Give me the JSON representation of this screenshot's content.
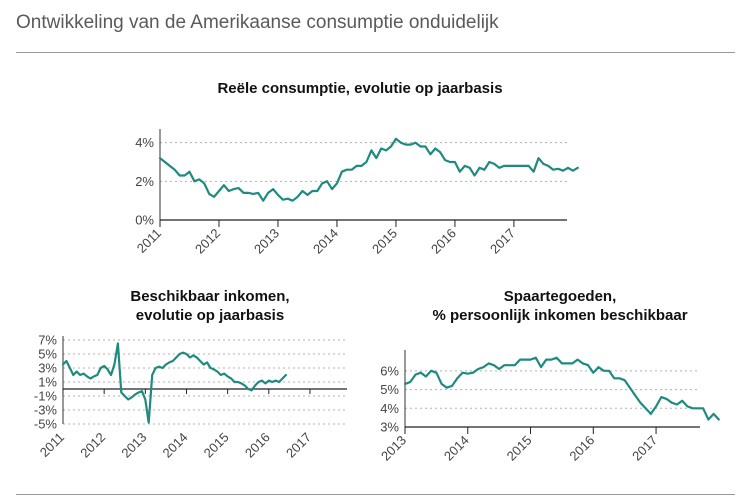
{
  "page": {
    "title": "Ontwikkeling van de Amerikaanse consumptie onduidelijk",
    "line_color": "#1f8a80",
    "grid_color": "#b0b0b0"
  },
  "chart_data": [
    {
      "type": "line",
      "title_lines": [
        "Reële consumptie, evolutie op jaarbasis"
      ],
      "xlabel": "",
      "ylabel": "",
      "xlim": [
        2011,
        2017.9
      ],
      "ylim": [
        0,
        4.5
      ],
      "yticks": [
        0,
        2,
        4
      ],
      "ytick_labels": [
        "0%",
        "2%",
        "4%"
      ],
      "xticks": [
        2011,
        2012,
        2013,
        2014,
        2015,
        2016,
        2017
      ],
      "xtick_labels": [
        "2011",
        "2012",
        "2013",
        "2014",
        "2015",
        "2016",
        "2017"
      ],
      "grid": true,
      "series": [
        {
          "x_start": 2011,
          "x_step": 0.0833333,
          "values": [
            3.2,
            3.0,
            2.8,
            2.6,
            2.3,
            2.3,
            2.5,
            2.0,
            2.1,
            1.9,
            1.35,
            1.2,
            1.5,
            1.8,
            1.5,
            1.6,
            1.65,
            1.4,
            1.4,
            1.35,
            1.4,
            1.0,
            1.4,
            1.6,
            1.3,
            1.05,
            1.1,
            1.0,
            1.2,
            1.5,
            1.3,
            1.5,
            1.5,
            1.9,
            2.0,
            1.6,
            1.9,
            2.5,
            2.6,
            2.6,
            2.8,
            2.8,
            3.0,
            3.6,
            3.2,
            3.7,
            3.6,
            3.8,
            4.2,
            4.0,
            3.9,
            3.9,
            4.0,
            3.8,
            3.8,
            3.4,
            3.7,
            3.5,
            3.1,
            3.0,
            3.0,
            2.5,
            2.8,
            2.7,
            2.3,
            2.7,
            2.6,
            3.0,
            2.9,
            2.7,
            2.8,
            2.8,
            2.8,
            2.8,
            2.8,
            2.8,
            2.5,
            3.2,
            2.9,
            2.8,
            2.6,
            2.65,
            2.55,
            2.7,
            2.55,
            2.7
          ]
        }
      ]
    },
    {
      "type": "line",
      "title_lines": [
        "Beschikbaar inkomen,",
        "evolutie op jaarbasis"
      ],
      "xlabel": "",
      "ylabel": "",
      "xlim": [
        2011,
        2017.9
      ],
      "ylim": [
        -5,
        7
      ],
      "yticks": [
        7,
        5,
        3,
        1,
        -1,
        -3,
        -5
      ],
      "ytick_labels": [
        "7%",
        "5%",
        "3%",
        "1%",
        "-1%",
        "-3%",
        "-5%"
      ],
      "xticks": [
        2011,
        2012,
        2013,
        2014,
        2015,
        2016,
        2017
      ],
      "xtick_labels": [
        "2011",
        "2012",
        "2013",
        "2014",
        "2015",
        "2016",
        "2017"
      ],
      "grid": true,
      "zero_axis": 0,
      "series": [
        {
          "x_start": 2011,
          "x_step": 0.0833333,
          "values": [
            3.5,
            4.0,
            3.0,
            2.0,
            2.5,
            2.0,
            2.2,
            1.8,
            1.5,
            1.8,
            2.0,
            3.0,
            3.3,
            2.8,
            2.0,
            3.5,
            6.5,
            -0.5,
            -1.0,
            -1.5,
            -1.2,
            -0.8,
            -0.5,
            -0.3,
            -1.5,
            -4.8,
            2.0,
            3.0,
            3.2,
            3.0,
            3.5,
            3.8,
            4.0,
            4.5,
            5.0,
            5.2,
            5.0,
            4.5,
            4.8,
            4.5,
            4.0,
            3.5,
            3.8,
            3.0,
            2.8,
            2.5,
            2.0,
            2.2,
            1.8,
            1.5,
            1.0,
            1.0,
            0.8,
            0.5,
            0.0,
            -0.2,
            0.5,
            1.0,
            1.2,
            0.8,
            1.2,
            1.0,
            1.2,
            1.0,
            1.5,
            2.0
          ]
        }
      ]
    },
    {
      "type": "line",
      "title_lines": [
        "Spaartegoeden,",
        "% persoonlijk inkomen beschikbaar"
      ],
      "xlabel": "",
      "ylabel": "",
      "xlim": [
        2013,
        2017.7
      ],
      "ylim": [
        3,
        6.9
      ],
      "yticks": [
        3,
        4,
        5,
        6
      ],
      "ytick_labels": [
        "3%",
        "4%",
        "5%",
        "6%"
      ],
      "xticks": [
        2013,
        2014,
        2015,
        2016,
        2017
      ],
      "xtick_labels": [
        "2013",
        "2014",
        "2015",
        "2016",
        "2017"
      ],
      "grid": true,
      "series": [
        {
          "x_start": 2013,
          "x_step": 0.0833333,
          "values": [
            5.3,
            5.4,
            5.8,
            5.9,
            5.7,
            6.0,
            5.9,
            5.3,
            5.1,
            5.2,
            5.6,
            5.9,
            5.85,
            5.9,
            6.1,
            6.2,
            6.4,
            6.3,
            6.1,
            6.3,
            6.3,
            6.3,
            6.6,
            6.6,
            6.6,
            6.7,
            6.2,
            6.6,
            6.6,
            6.7,
            6.4,
            6.4,
            6.4,
            6.6,
            6.4,
            6.3,
            5.9,
            6.2,
            6.0,
            6.0,
            5.6,
            5.6,
            5.5,
            5.1,
            4.7,
            4.3,
            4.0,
            3.7,
            4.1,
            4.6,
            4.5,
            4.3,
            4.2,
            4.4,
            4.1,
            4.0,
            4.0,
            4.0,
            3.4,
            3.7,
            3.4
          ]
        }
      ]
    }
  ]
}
